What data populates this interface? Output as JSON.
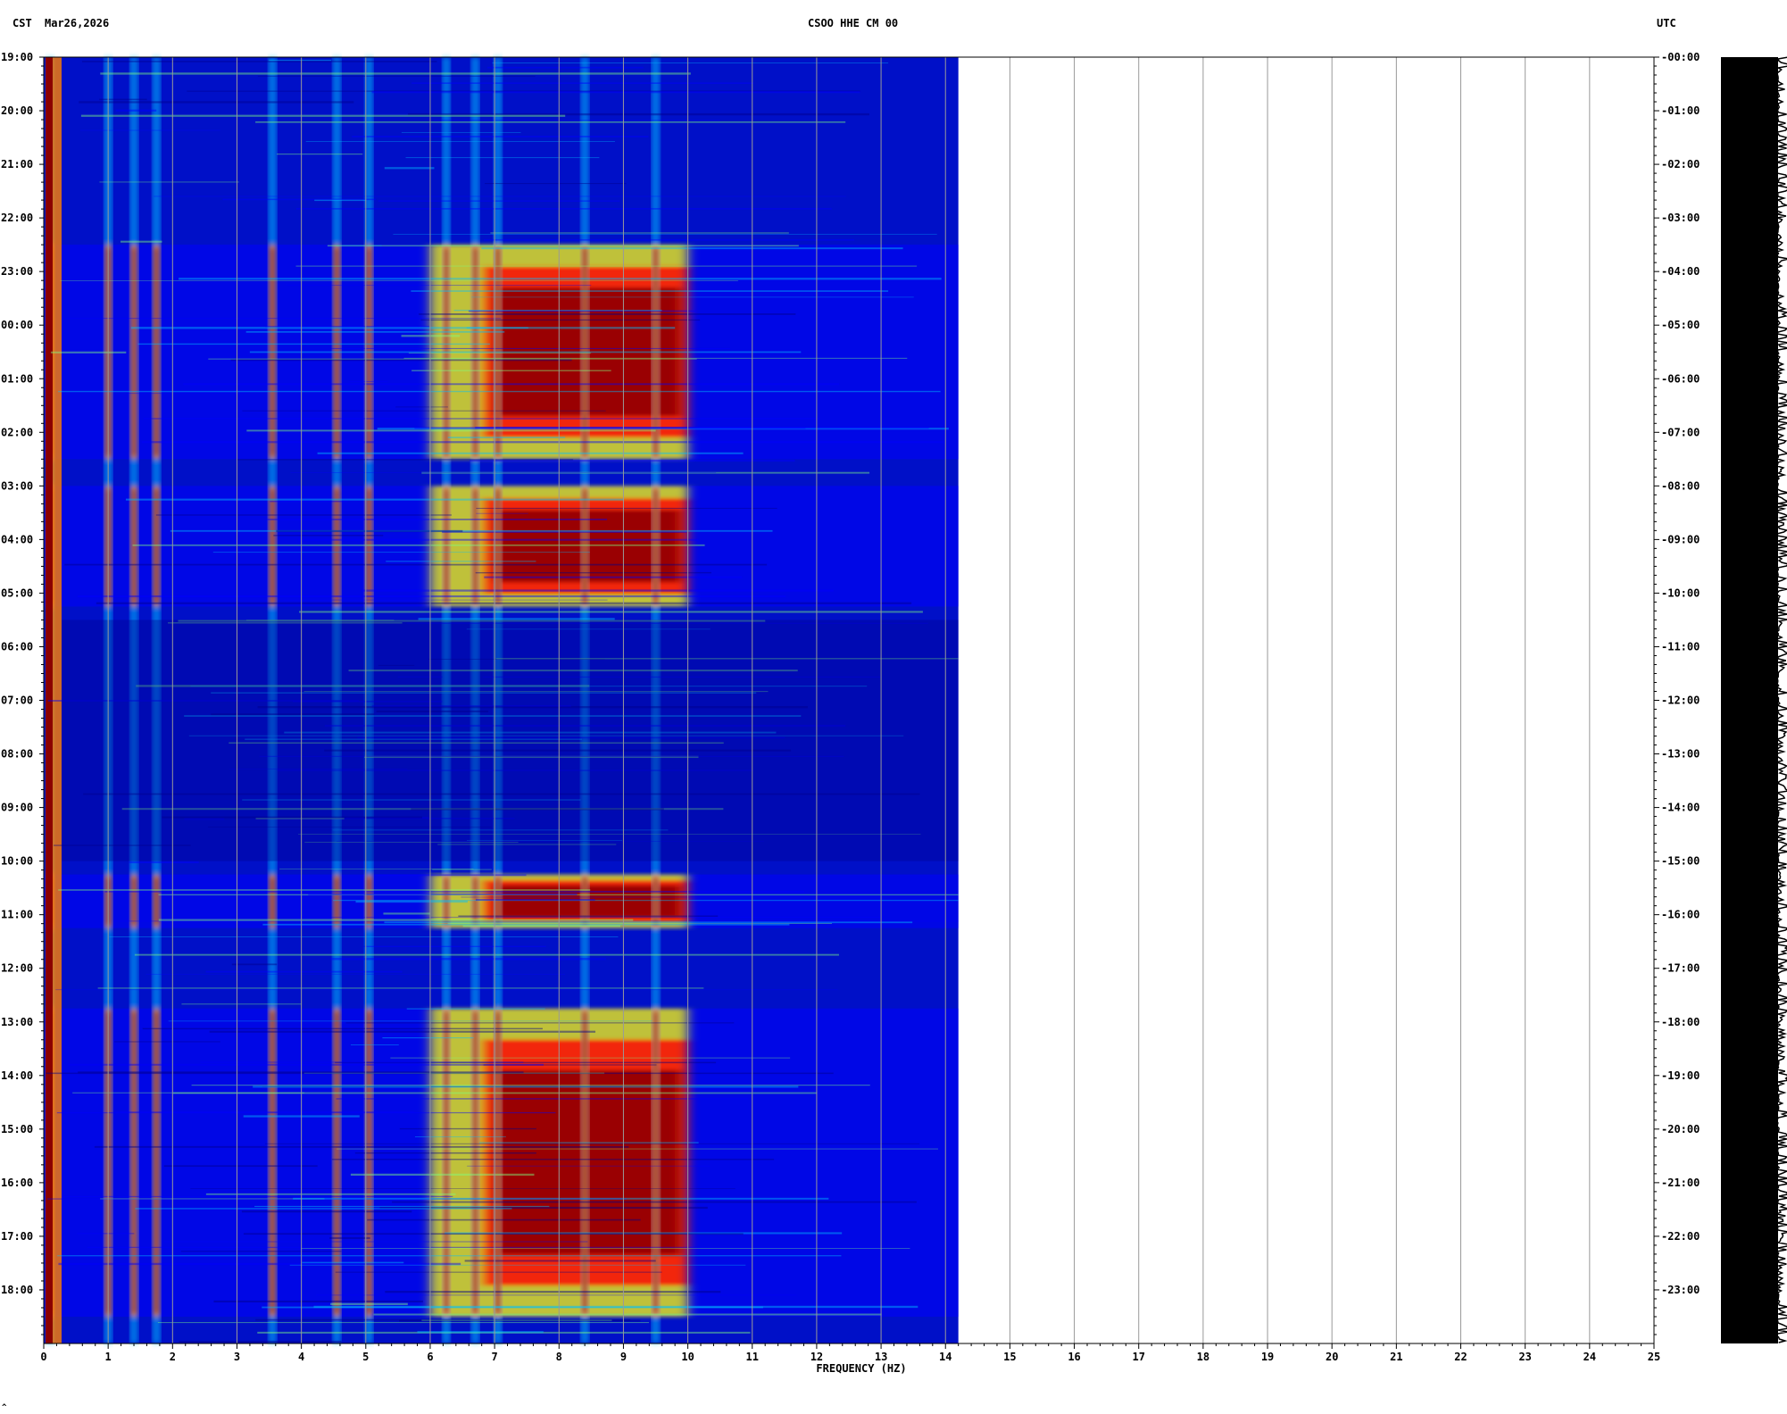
{
  "header": {
    "left_zone": "CST",
    "date": "Mar26,2026",
    "station": "CSOO HHE CM 00",
    "right_zone": "UTC"
  },
  "footer": {
    "mark": "^"
  },
  "chart_data": {
    "type": "heatmap",
    "title": "CSOO HHE CM 00",
    "xlabel": "FREQUENCY (HZ)",
    "xlim": [
      0,
      25
    ],
    "x_ticks": [
      "0",
      "1",
      "2",
      "3",
      "4",
      "5",
      "6",
      "7",
      "8",
      "9",
      "10",
      "11",
      "12",
      "13",
      "14",
      "15",
      "16",
      "17",
      "18",
      "19",
      "20",
      "21",
      "22",
      "23",
      "24",
      "25"
    ],
    "data_max_frequency": 14.2,
    "left_axis_zone": "CST",
    "right_axis_zone": "UTC",
    "left_time_labels": [
      "19:00",
      "20:00",
      "21:00",
      "22:00",
      "23:00",
      "00:00",
      "01:00",
      "02:00",
      "03:00",
      "04:00",
      "05:00",
      "06:00",
      "07:00",
      "08:00",
      "09:00",
      "10:00",
      "11:00",
      "12:00",
      "13:00",
      "14:00",
      "15:00",
      "16:00",
      "17:00",
      "18:00"
    ],
    "right_time_labels": [
      "00:00",
      "01:00",
      "02:00",
      "03:00",
      "04:00",
      "05:00",
      "06:00",
      "07:00",
      "08:00",
      "09:00",
      "10:00",
      "11:00",
      "12:00",
      "13:00",
      "14:00",
      "15:00",
      "16:00",
      "17:00",
      "18:00",
      "19:00",
      "20:00",
      "21:00",
      "22:00",
      "23:00"
    ],
    "hours_shown": 24,
    "colormap": [
      "#00008b",
      "#0000ff",
      "#00bfff",
      "#7fff7f",
      "#ffff00",
      "#ff7f00",
      "#ff0000",
      "#8b0000"
    ],
    "spectral_lines_hz": [
      0.1,
      1.0,
      1.4,
      1.75,
      3.55,
      4.55,
      5.05,
      6.25,
      6.7,
      7.05,
      8.4,
      9.5
    ],
    "energetic_band_hz": [
      6.0,
      10.0
    ],
    "high_activity_periods_cst": [
      [
        "22:30",
        "02:30"
      ],
      [
        "03:00",
        "05:15"
      ],
      [
        "10:15",
        "11:15"
      ],
      [
        "12:45",
        "18:30"
      ]
    ],
    "quiet_period_cst": [
      "05:30",
      "10:00"
    ],
    "grid": true
  }
}
